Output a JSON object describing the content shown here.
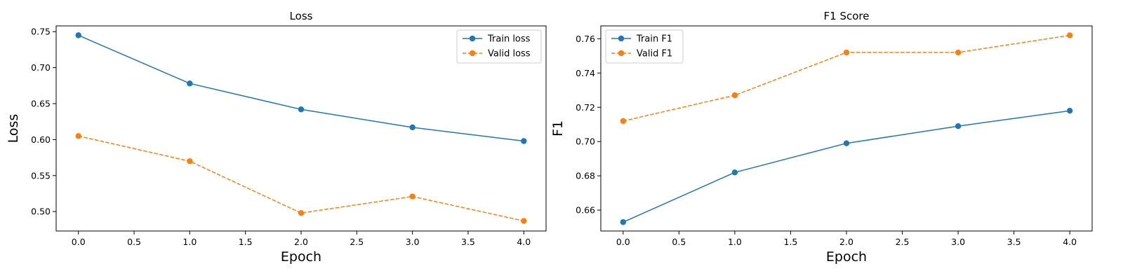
{
  "chart_data": [
    {
      "type": "line",
      "title": "Loss",
      "xlabel": "Epoch",
      "ylabel": "Loss",
      "x": [
        0,
        1,
        2,
        3,
        4
      ],
      "xlim": [
        -0.2,
        4.2
      ],
      "ylim": [
        0.473,
        0.758
      ],
      "xticks": [
        "0.0",
        "0.5",
        "1.0",
        "1.5",
        "2.0",
        "2.5",
        "3.0",
        "3.5",
        "4.0"
      ],
      "yticks": [
        "0.50",
        "0.55",
        "0.60",
        "0.65",
        "0.70",
        "0.75"
      ],
      "grid": false,
      "legend_position": "top-right",
      "series": [
        {
          "name": "Train loss",
          "values": [
            0.745,
            0.678,
            0.642,
            0.617,
            0.598
          ],
          "color": "#1f77b4",
          "linestyle": "solid",
          "marker": "circle"
        },
        {
          "name": "Valid loss",
          "values": [
            0.605,
            0.57,
            0.498,
            0.521,
            0.487
          ],
          "color": "#ff7f0e",
          "linestyle": "dashed",
          "marker": "circle"
        }
      ]
    },
    {
      "type": "line",
      "title": "F1 Score",
      "xlabel": "Epoch",
      "ylabel": "F1",
      "x": [
        0,
        1,
        2,
        3,
        4
      ],
      "xlim": [
        -0.2,
        4.2
      ],
      "ylim": [
        0.6478,
        0.7675
      ],
      "xticks": [
        "0.0",
        "0.5",
        "1.0",
        "1.5",
        "2.0",
        "2.5",
        "3.0",
        "3.5",
        "4.0"
      ],
      "yticks": [
        "0.66",
        "0.68",
        "0.70",
        "0.72",
        "0.74",
        "0.76"
      ],
      "grid": false,
      "legend_position": "top-left",
      "series": [
        {
          "name": "Train F1",
          "values": [
            0.653,
            0.682,
            0.699,
            0.709,
            0.718
          ],
          "color": "#1f77b4",
          "linestyle": "solid",
          "marker": "circle"
        },
        {
          "name": "Valid F1",
          "values": [
            0.712,
            0.727,
            0.752,
            0.752,
            0.762
          ],
          "color": "#ff7f0e",
          "linestyle": "dashed",
          "marker": "circle"
        }
      ]
    }
  ]
}
